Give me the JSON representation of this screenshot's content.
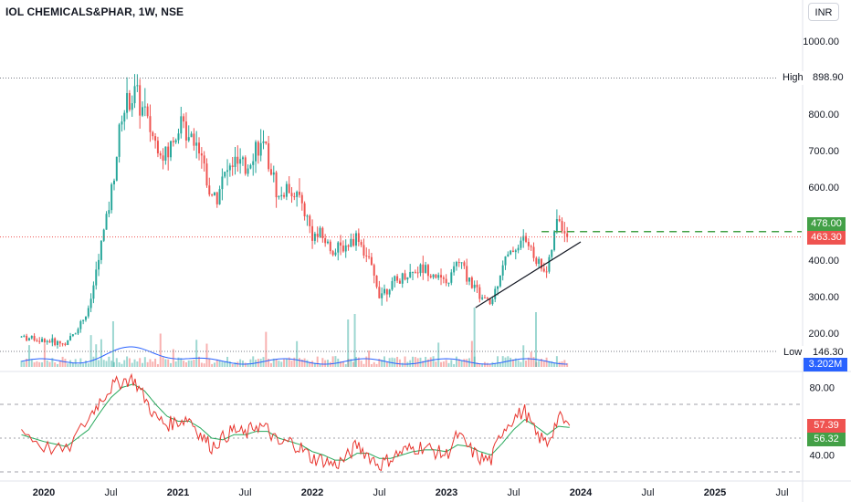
{
  "header": {
    "title": "IOL CHEMICALS&PHAR, 1W, NSE",
    "currency": "INR"
  },
  "colors": {
    "up": "#26a69a",
    "down": "#ef5350",
    "rsi_line": "#e8352e",
    "rsi_ma": "#26a85b",
    "volume_ma": "#2962ff",
    "breakout_line": "#43a047",
    "trendline": "#131722"
  },
  "price_scale": {
    "ticks": [
      "1000.00",
      "800.00",
      "700.00",
      "600.00",
      "400.00",
      "300.00",
      "200.00"
    ],
    "high_label": "High",
    "high_value": "898.90",
    "low_label": "Low",
    "low_value": "146.30",
    "breakout_value": "478.00",
    "last_price": "463.30",
    "volume_value": "3.202M"
  },
  "rsi_scale": {
    "ticks": [
      "80.00",
      "40.00"
    ],
    "rsi_value": "57.39",
    "rsi_ma_value": "56.32"
  },
  "time_axis": {
    "labels": [
      "2020",
      "Jul",
      "2021",
      "Jul",
      "2022",
      "Jul",
      "2023",
      "Jul",
      "2024",
      "Jul",
      "2025",
      "Jul"
    ]
  },
  "chart_data": [
    {
      "type": "line",
      "title": "IOL CHEMICALS&PHAR, 1W, NSE",
      "x": [
        "2019-11",
        "2020-01",
        "2020-03",
        "2020-05",
        "2020-06",
        "2020-07",
        "2020-08",
        "2020-09",
        "2020-10",
        "2020-11",
        "2020-12",
        "2021-01",
        "2021-02",
        "2021-03",
        "2021-04",
        "2021-05",
        "2021-06",
        "2021-07",
        "2021-08",
        "2021-09",
        "2021-10",
        "2021-11",
        "2021-12",
        "2022-01",
        "2022-02",
        "2022-03",
        "2022-04",
        "2022-05",
        "2022-06",
        "2022-07",
        "2022-08",
        "2022-09",
        "2022-10",
        "2022-11",
        "2022-12",
        "2023-01",
        "2023-02",
        "2023-03",
        "2023-04",
        "2023-05",
        "2023-06",
        "2023-07",
        "2023-08",
        "2023-09",
        "2023-10",
        "2023-11",
        "2023-12"
      ],
      "values": [
        190,
        180,
        170,
        260,
        420,
        580,
        800,
        860,
        800,
        720,
        680,
        770,
        760,
        710,
        560,
        620,
        670,
        640,
        720,
        680,
        570,
        600,
        560,
        470,
        460,
        420,
        440,
        470,
        400,
        310,
        330,
        350,
        370,
        380,
        360,
        330,
        400,
        350,
        300,
        280,
        390,
        430,
        460,
        400,
        370,
        520,
        450
      ],
      "ylim": [
        146.3,
        1000
      ],
      "high": 898.9,
      "low": 146.3,
      "last": 463.3,
      "breakout_level": 478.0,
      "yscale": "log"
    },
    {
      "type": "line",
      "title": "RSI",
      "x": [
        "2019-11",
        "2020-01",
        "2020-03",
        "2020-05",
        "2020-06",
        "2020-07",
        "2020-08",
        "2020-09",
        "2020-10",
        "2020-11",
        "2020-12",
        "2021-01",
        "2021-02",
        "2021-03",
        "2021-04",
        "2021-05",
        "2021-06",
        "2021-07",
        "2021-08",
        "2021-09",
        "2021-10",
        "2021-11",
        "2021-12",
        "2022-01",
        "2022-02",
        "2022-03",
        "2022-04",
        "2022-05",
        "2022-06",
        "2022-07",
        "2022-08",
        "2022-09",
        "2022-10",
        "2022-11",
        "2022-12",
        "2023-01",
        "2023-02",
        "2023-03",
        "2023-04",
        "2023-05",
        "2023-06",
        "2023-07",
        "2023-08",
        "2023-09",
        "2023-10",
        "2023-11",
        "2023-12"
      ],
      "series": [
        {
          "values": [
            55,
            45,
            42,
            62,
            72,
            80,
            84,
            85,
            74,
            62,
            58,
            60,
            62,
            52,
            45,
            50,
            55,
            52,
            58,
            55,
            46,
            48,
            44,
            38,
            37,
            34,
            38,
            46,
            40,
            34,
            38,
            42,
            44,
            45,
            42,
            40,
            52,
            44,
            38,
            37,
            55,
            62,
            66,
            52,
            47,
            62,
            57.39
          ]
        },
        {
          "values": [
            52,
            48,
            45,
            55,
            65,
            74,
            80,
            82,
            78,
            70,
            63,
            60,
            60,
            56,
            50,
            49,
            52,
            52,
            54,
            54,
            50,
            48,
            46,
            42,
            40,
            37,
            37,
            41,
            41,
            38,
            38,
            40,
            42,
            43,
            43,
            42,
            46,
            45,
            42,
            40,
            47,
            55,
            61,
            57,
            52,
            57,
            56.32
          ]
        }
      ],
      "ylim": [
        30,
        90
      ],
      "bands": [
        70,
        50,
        30
      ]
    }
  ]
}
